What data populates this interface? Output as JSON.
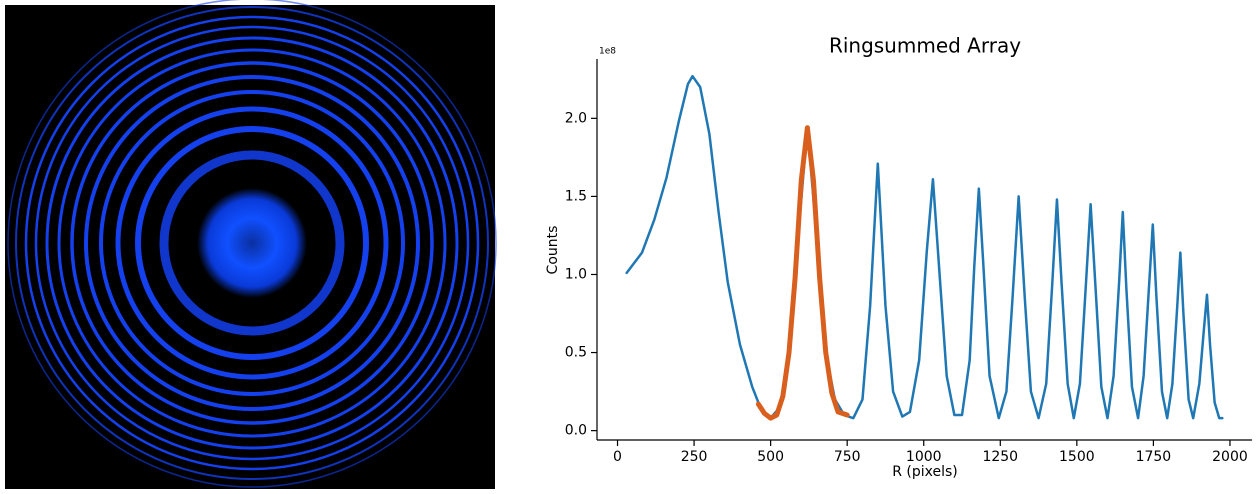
{
  "chart_data": {
    "type": "line",
    "title": "Ringsummed Array",
    "xlabel": "R (pixels)",
    "ylabel": "Counts",
    "y_offset_label": "1e8",
    "xlim": [
      -67,
      2072
    ],
    "ylim": [
      -0.06,
      2.38
    ],
    "xticks": [
      0,
      250,
      500,
      750,
      1000,
      1250,
      1500,
      1750,
      2000
    ],
    "yticks": [
      {
        "value": 0,
        "label": "0.0"
      },
      {
        "value": 0.5,
        "label": "0.5"
      },
      {
        "value": 1,
        "label": "1.0"
      },
      {
        "value": 1.5,
        "label": "1.5"
      },
      {
        "value": 2,
        "label": "2.0"
      }
    ],
    "series": [
      {
        "color": "#1f77b4",
        "x": [
          30,
          80,
          120,
          160,
          200,
          230,
          245,
          270,
          300,
          330,
          360,
          400,
          440,
          470,
          500,
          530,
          560,
          590,
          620,
          650,
          680,
          710,
          740,
          770,
          800,
          825,
          850,
          875,
          900,
          930,
          955,
          985,
          1010,
          1030,
          1050,
          1075,
          1100,
          1125,
          1150,
          1165,
          1180,
          1195,
          1215,
          1245,
          1270,
          1290,
          1310,
          1330,
          1350,
          1375,
          1400,
          1420,
          1435,
          1450,
          1470,
          1490,
          1510,
          1530,
          1545,
          1560,
          1580,
          1600,
          1620,
          1638,
          1650,
          1662,
          1680,
          1700,
          1718,
          1735,
          1748,
          1760,
          1778,
          1795,
          1812,
          1828,
          1838,
          1848,
          1865,
          1880,
          1900,
          1915,
          1925,
          1935,
          1950,
          1965,
          1975
        ],
        "values": [
          1.01,
          1.14,
          1.35,
          1.62,
          1.98,
          2.22,
          2.27,
          2.2,
          1.9,
          1.4,
          0.95,
          0.55,
          0.28,
          0.13,
          0.08,
          0.15,
          0.5,
          1.25,
          1.94,
          1.25,
          0.5,
          0.2,
          0.1,
          0.08,
          0.2,
          0.8,
          1.71,
          0.8,
          0.25,
          0.09,
          0.12,
          0.45,
          1.15,
          1.61,
          1.05,
          0.35,
          0.1,
          0.1,
          0.45,
          1.05,
          1.55,
          1.05,
          0.35,
          0.08,
          0.25,
          0.85,
          1.5,
          0.85,
          0.25,
          0.08,
          0.3,
          0.95,
          1.48,
          0.95,
          0.3,
          0.08,
          0.3,
          0.95,
          1.45,
          0.95,
          0.28,
          0.08,
          0.35,
          0.95,
          1.4,
          0.9,
          0.28,
          0.08,
          0.35,
          0.9,
          1.32,
          0.85,
          0.25,
          0.08,
          0.3,
          0.8,
          1.14,
          0.75,
          0.2,
          0.08,
          0.3,
          0.65,
          0.87,
          0.55,
          0.18,
          0.08,
          0.08
        ]
      },
      {
        "color": "#d95f1e",
        "x": [
          460,
          480,
          500,
          520,
          540,
          560,
          580,
          600,
          620,
          640,
          660,
          680,
          700,
          720,
          750
        ],
        "values": [
          0.17,
          0.11,
          0.08,
          0.1,
          0.22,
          0.5,
          0.98,
          1.6,
          1.94,
          1.6,
          0.98,
          0.5,
          0.24,
          0.12,
          0.1
        ]
      }
    ]
  }
}
